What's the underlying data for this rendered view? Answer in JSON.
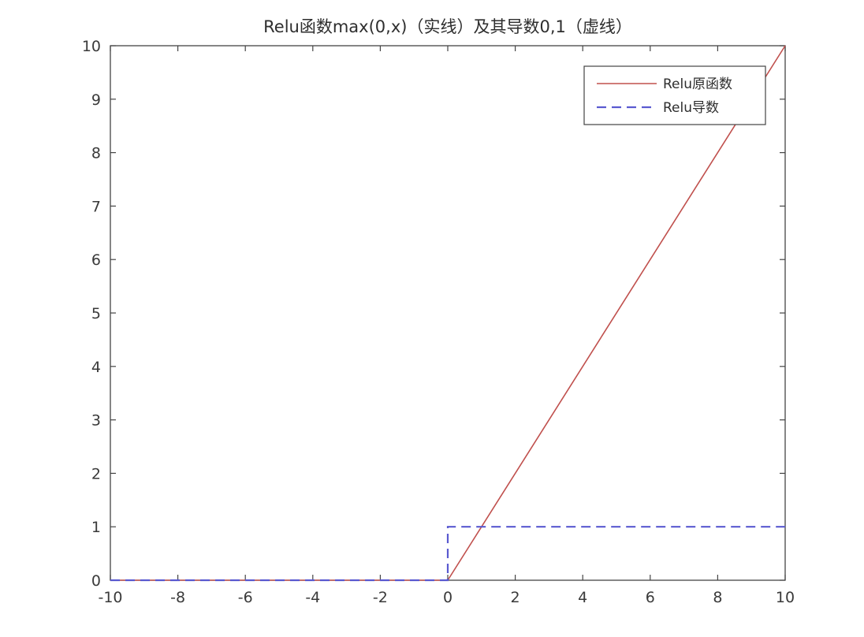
{
  "chart_data": {
    "type": "line",
    "title": "Relu函数max(0,x)（实线）及其导数0,1（虚线）",
    "xlabel": "",
    "ylabel": "",
    "xlim": [
      -10,
      10
    ],
    "ylim": [
      0,
      10
    ],
    "x_ticks": [
      -10,
      -8,
      -6,
      -4,
      -2,
      0,
      2,
      4,
      6,
      8,
      10
    ],
    "y_ticks": [
      0,
      1,
      2,
      3,
      4,
      5,
      6,
      7,
      8,
      9,
      10
    ],
    "x_tick_labels": [
      "-10",
      "-8",
      "-6",
      "-4",
      "-2",
      "0",
      "2",
      "4",
      "6",
      "8",
      "10"
    ],
    "y_tick_labels": [
      "0",
      "1",
      "2",
      "3",
      "4",
      "5",
      "6",
      "7",
      "8",
      "9",
      "10"
    ],
    "grid": false,
    "legend_position": "top-right",
    "series": [
      {
        "name": "Relu原函数",
        "style": "solid",
        "color": "#c0504d",
        "x": [
          -10,
          0,
          10
        ],
        "y": [
          0,
          0,
          10
        ]
      },
      {
        "name": "Relu导数",
        "style": "dashed",
        "color": "#5a5ad0",
        "x": [
          -10,
          0,
          0,
          10
        ],
        "y": [
          0,
          0,
          1,
          1
        ]
      }
    ]
  }
}
